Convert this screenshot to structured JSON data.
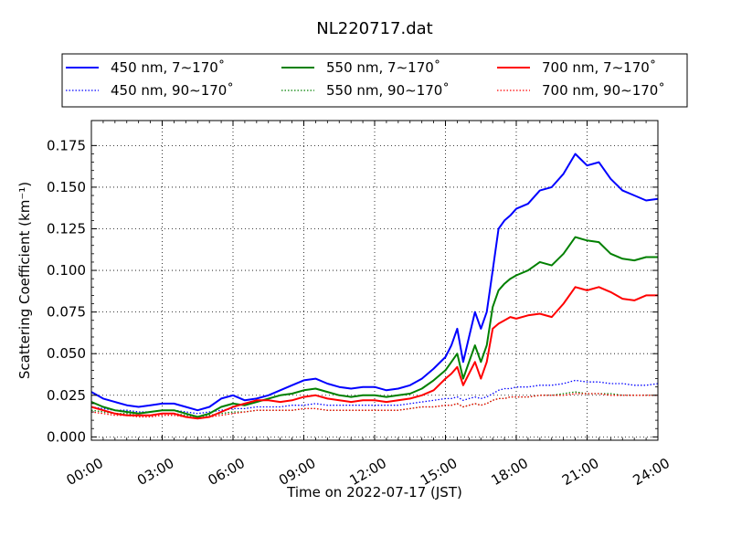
{
  "chart_data": {
    "type": "line",
    "title": "NL220717.dat",
    "xlabel": "Time on 2022-07-17 (JST)",
    "ylabel": "Scattering Coefficient (km⁻¹)",
    "xlim_hours": [
      0,
      24
    ],
    "ylim": [
      -0.002,
      0.19
    ],
    "x_ticks": [
      "00:00",
      "03:00",
      "06:00",
      "09:00",
      "12:00",
      "15:00",
      "18:00",
      "21:00",
      "24:00"
    ],
    "y_ticks": [
      "0.000",
      "0.025",
      "0.050",
      "0.075",
      "0.100",
      "0.125",
      "0.150",
      "0.175"
    ],
    "grid": true,
    "legend_position": "top",
    "x_hours": [
      0,
      0.5,
      1,
      1.5,
      2,
      2.5,
      3,
      3.5,
      4,
      4.5,
      5,
      5.5,
      6,
      6.5,
      7,
      7.5,
      8,
      8.5,
      9,
      9.5,
      10,
      10.5,
      11,
      11.5,
      12,
      12.5,
      13,
      13.5,
      14,
      14.5,
      15,
      15.25,
      15.5,
      15.75,
      16,
      16.25,
      16.5,
      16.75,
      17,
      17.25,
      17.5,
      17.75,
      18,
      18.5,
      19,
      19.5,
      20,
      20.5,
      21,
      21.5,
      22,
      22.5,
      23,
      23.5,
      24
    ],
    "series": [
      {
        "name": "450 nm, 7∼170˚",
        "color": "#0000ff",
        "style": "solid",
        "values": [
          0.027,
          0.023,
          0.021,
          0.019,
          0.018,
          0.019,
          0.02,
          0.02,
          0.018,
          0.016,
          0.018,
          0.023,
          0.025,
          0.022,
          0.023,
          0.025,
          0.028,
          0.031,
          0.034,
          0.035,
          0.032,
          0.03,
          0.029,
          0.03,
          0.03,
          0.028,
          0.029,
          0.031,
          0.035,
          0.041,
          0.048,
          0.055,
          0.065,
          0.045,
          0.06,
          0.075,
          0.065,
          0.075,
          0.1,
          0.125,
          0.13,
          0.133,
          0.137,
          0.14,
          0.148,
          0.15,
          0.158,
          0.17,
          0.163,
          0.165,
          0.155,
          0.148,
          0.145,
          0.142,
          0.143
        ]
      },
      {
        "name": "550 nm, 7∼170˚",
        "color": "#008000",
        "style": "solid",
        "values": [
          0.021,
          0.018,
          0.016,
          0.015,
          0.014,
          0.015,
          0.016,
          0.016,
          0.014,
          0.012,
          0.014,
          0.018,
          0.02,
          0.019,
          0.021,
          0.023,
          0.025,
          0.026,
          0.028,
          0.029,
          0.027,
          0.025,
          0.024,
          0.025,
          0.025,
          0.024,
          0.025,
          0.026,
          0.029,
          0.034,
          0.04,
          0.045,
          0.05,
          0.035,
          0.045,
          0.055,
          0.045,
          0.055,
          0.078,
          0.088,
          0.092,
          0.095,
          0.097,
          0.1,
          0.105,
          0.103,
          0.11,
          0.12,
          0.118,
          0.117,
          0.11,
          0.107,
          0.106,
          0.108,
          0.108
        ]
      },
      {
        "name": "700 nm, 7∼170˚",
        "color": "#ff0000",
        "style": "solid",
        "values": [
          0.018,
          0.016,
          0.014,
          0.013,
          0.013,
          0.013,
          0.014,
          0.014,
          0.012,
          0.011,
          0.012,
          0.015,
          0.018,
          0.02,
          0.022,
          0.022,
          0.021,
          0.022,
          0.024,
          0.025,
          0.023,
          0.022,
          0.021,
          0.022,
          0.022,
          0.021,
          0.022,
          0.023,
          0.025,
          0.028,
          0.035,
          0.038,
          0.042,
          0.031,
          0.038,
          0.045,
          0.035,
          0.045,
          0.065,
          0.068,
          0.07,
          0.072,
          0.071,
          0.073,
          0.074,
          0.072,
          0.08,
          0.09,
          0.088,
          0.09,
          0.087,
          0.083,
          0.082,
          0.085,
          0.085
        ]
      },
      {
        "name": "450 nm, 90∼170˚",
        "color": "#0000ff",
        "style": "dotted",
        "values": [
          0.018,
          0.017,
          0.016,
          0.016,
          0.015,
          0.015,
          0.016,
          0.016,
          0.015,
          0.014,
          0.015,
          0.016,
          0.017,
          0.017,
          0.018,
          0.018,
          0.018,
          0.019,
          0.019,
          0.02,
          0.019,
          0.019,
          0.019,
          0.019,
          0.019,
          0.019,
          0.019,
          0.02,
          0.021,
          0.022,
          0.023,
          0.023,
          0.024,
          0.022,
          0.023,
          0.024,
          0.023,
          0.024,
          0.026,
          0.028,
          0.029,
          0.029,
          0.03,
          0.03,
          0.031,
          0.031,
          0.032,
          0.034,
          0.033,
          0.033,
          0.032,
          0.032,
          0.031,
          0.031,
          0.032
        ]
      },
      {
        "name": "550 nm, 90∼170˚",
        "color": "#008000",
        "style": "dotted",
        "values": [
          0.016,
          0.015,
          0.014,
          0.014,
          0.013,
          0.013,
          0.014,
          0.014,
          0.013,
          0.012,
          0.013,
          0.014,
          0.015,
          0.015,
          0.016,
          0.016,
          0.016,
          0.016,
          0.017,
          0.017,
          0.016,
          0.016,
          0.016,
          0.016,
          0.016,
          0.016,
          0.016,
          0.017,
          0.018,
          0.018,
          0.019,
          0.019,
          0.02,
          0.018,
          0.019,
          0.02,
          0.019,
          0.02,
          0.022,
          0.023,
          0.023,
          0.024,
          0.024,
          0.024,
          0.025,
          0.025,
          0.026,
          0.027,
          0.026,
          0.026,
          0.026,
          0.025,
          0.025,
          0.025,
          0.025
        ]
      },
      {
        "name": "700 nm, 90∼170˚",
        "color": "#ff0000",
        "style": "dotted",
        "values": [
          0.015,
          0.014,
          0.013,
          0.013,
          0.012,
          0.012,
          0.013,
          0.013,
          0.012,
          0.011,
          0.012,
          0.013,
          0.014,
          0.015,
          0.016,
          0.016,
          0.016,
          0.016,
          0.017,
          0.017,
          0.016,
          0.016,
          0.016,
          0.016,
          0.016,
          0.016,
          0.016,
          0.017,
          0.018,
          0.018,
          0.019,
          0.019,
          0.02,
          0.018,
          0.019,
          0.02,
          0.019,
          0.02,
          0.022,
          0.023,
          0.023,
          0.024,
          0.024,
          0.024,
          0.025,
          0.025,
          0.025,
          0.026,
          0.026,
          0.026,
          0.025,
          0.025,
          0.025,
          0.025,
          0.025
        ]
      }
    ]
  }
}
